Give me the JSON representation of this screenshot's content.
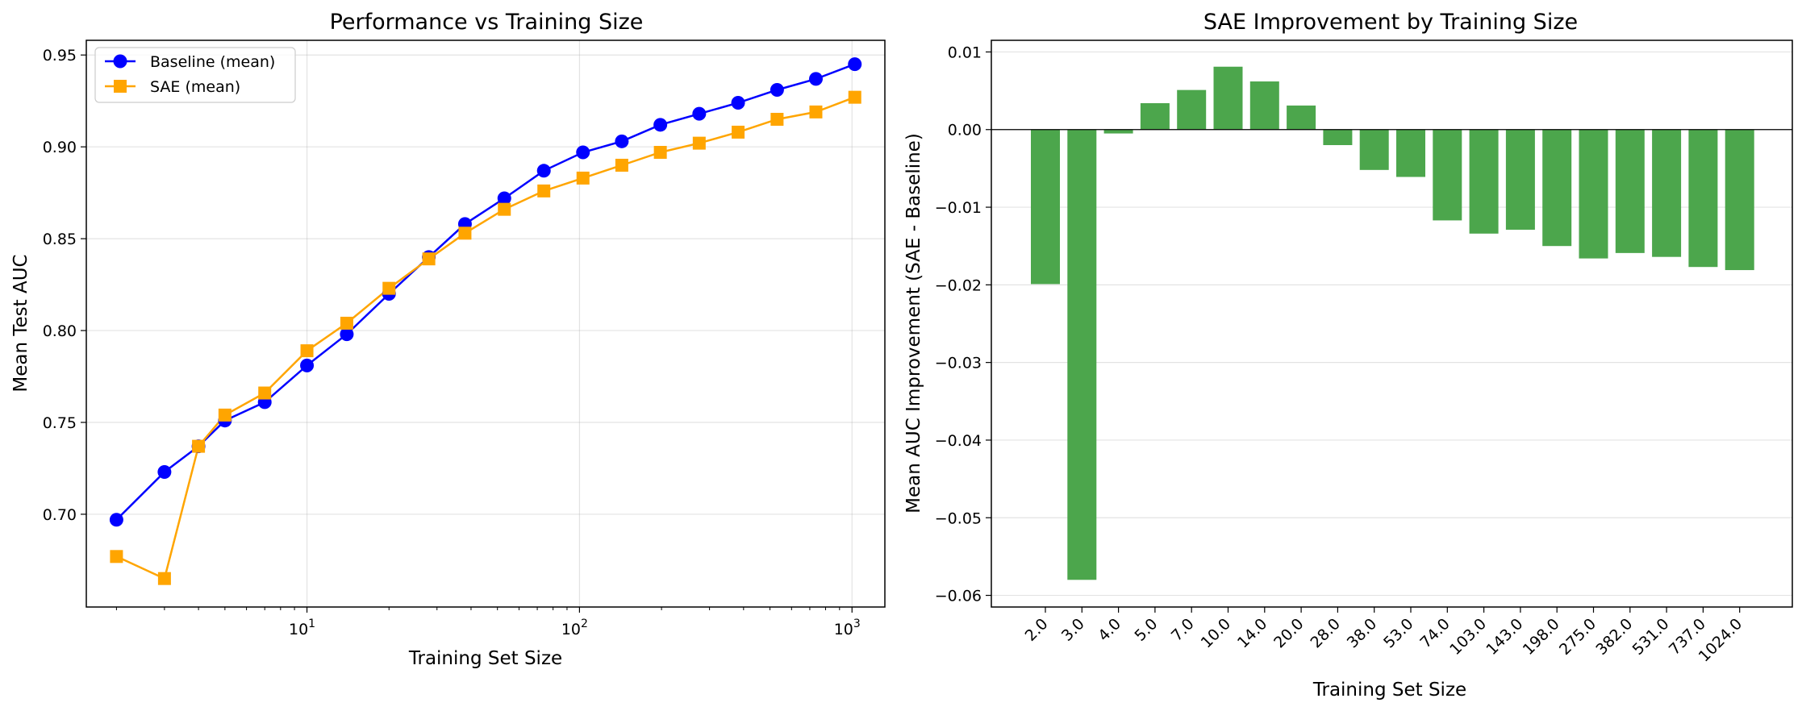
{
  "chart_data": [
    {
      "type": "line",
      "title": "Performance vs Training Size",
      "xlabel": "Training Set Size",
      "ylabel": "Mean Test AUC",
      "xscale": "log",
      "xlim": [
        1.55,
        1320
      ],
      "ylim": [
        0.6495,
        0.958
      ],
      "grid": true,
      "legend_position": "top-left",
      "x": [
        2,
        3,
        4,
        5,
        7,
        10,
        14,
        20,
        28,
        38,
        53,
        74,
        103,
        143,
        198,
        275,
        382,
        531,
        737,
        1024
      ],
      "x_ticks": [
        {
          "value": 10,
          "base": "10",
          "exp": "1"
        },
        {
          "value": 100,
          "base": "10",
          "exp": "2"
        },
        {
          "value": 1000,
          "base": "10",
          "exp": "3"
        }
      ],
      "y_ticks": [
        "0.70",
        "0.75",
        "0.80",
        "0.85",
        "0.90",
        "0.95"
      ],
      "series": [
        {
          "name": "Baseline (mean)",
          "color": "#0000ff",
          "marker": "circle",
          "values": [
            0.697,
            0.723,
            0.737,
            0.751,
            0.761,
            0.781,
            0.798,
            0.82,
            0.84,
            0.858,
            0.872,
            0.887,
            0.897,
            0.903,
            0.912,
            0.918,
            0.924,
            0.931,
            0.937,
            0.945
          ]
        },
        {
          "name": "SAE (mean)",
          "color": "#ffa500",
          "marker": "square",
          "values": [
            0.677,
            0.665,
            0.737,
            0.754,
            0.766,
            0.789,
            0.804,
            0.823,
            0.839,
            0.853,
            0.866,
            0.876,
            0.883,
            0.89,
            0.897,
            0.902,
            0.908,
            0.915,
            0.919,
            0.927
          ]
        }
      ]
    },
    {
      "type": "bar",
      "title": "SAE Improvement by Training Size",
      "xlabel": "Training Set Size",
      "ylabel": "Mean AUC Improvement (SAE - Baseline)",
      "ylim": [
        -0.0615,
        0.0115
      ],
      "grid": true,
      "bar_color": "#4ca64c",
      "categories": [
        "2.0",
        "3.0",
        "4.0",
        "5.0",
        "7.0",
        "10.0",
        "14.0",
        "20.0",
        "28.0",
        "38.0",
        "53.0",
        "74.0",
        "103.0",
        "143.0",
        "198.0",
        "275.0",
        "382.0",
        "531.0",
        "737.0",
        "1024.0"
      ],
      "values": [
        -0.0199,
        -0.058,
        -0.0005,
        0.0034,
        0.0051,
        0.0081,
        0.0062,
        0.0031,
        -0.002,
        -0.0052,
        -0.0061,
        -0.0117,
        -0.0134,
        -0.0129,
        -0.015,
        -0.0166,
        -0.0159,
        -0.0164,
        -0.0177,
        -0.0181
      ],
      "y_ticks": [
        "0.01",
        "0.00",
        "-0.01",
        "-0.02",
        "-0.03",
        "-0.04",
        "-0.05",
        "-0.06"
      ],
      "y_tick_values": [
        0.01,
        0.0,
        -0.01,
        -0.02,
        -0.03,
        -0.04,
        -0.05,
        -0.06
      ]
    }
  ]
}
